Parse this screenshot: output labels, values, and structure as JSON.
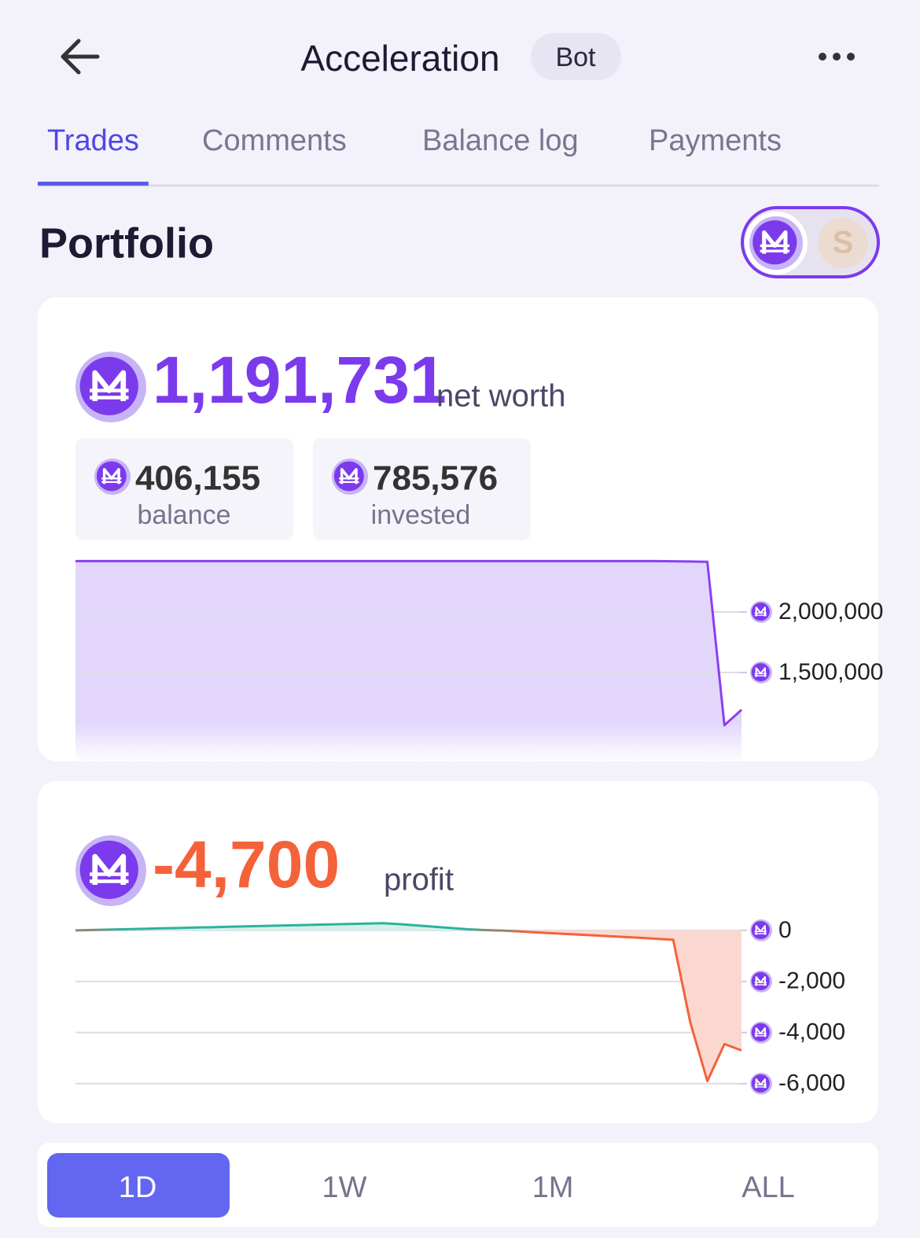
{
  "header": {
    "title": "Acceleration",
    "badge": "Bot"
  },
  "tabs": [
    "Trades",
    "Comments",
    "Balance log",
    "Payments"
  ],
  "active_tab": 0,
  "portfolio": {
    "title": "Portfolio",
    "net_worth": {
      "value": "1,191,731",
      "label": "net worth"
    },
    "balance": {
      "value": "406,155",
      "label": "balance"
    },
    "invested": {
      "value": "785,576",
      "label": "invested"
    },
    "profit": {
      "value": "-4,700",
      "label": "profit"
    }
  },
  "net_worth_chart": {
    "type": "area",
    "color": "#8b3ff0",
    "fill": "#e2d7fb",
    "values": [
      2420000,
      2420000,
      2420000,
      2420000,
      2420000,
      2420000,
      2420000,
      2420000,
      2420000,
      2420000,
      2420000,
      2420000,
      2420000,
      2420000,
      2420000,
      2420000,
      2420000,
      2420000,
      2420000,
      2420000,
      2420000,
      2420000,
      2420000,
      2420000,
      2420000,
      2420000,
      2420000,
      2420000,
      2420000,
      2420000,
      2420000,
      2420000,
      2420000,
      2420000,
      2420000,
      2418000,
      2416000,
      2414000,
      1065000,
      1191731
    ],
    "ylim": [
      750000,
      2500000
    ],
    "yticks": [
      {
        "value": 2000000,
        "label": "2,000,000"
      },
      {
        "value": 1500000,
        "label": "1,500,000"
      }
    ],
    "grid": true
  },
  "profit_chart": {
    "type": "area",
    "color_positive": "#2bb39a",
    "color_negative": "#f4623a",
    "fill_positive": "#d3f1ea",
    "fill_negative": "#fbd8cf",
    "values": [
      0,
      16,
      31,
      47,
      62,
      78,
      93,
      109,
      124,
      140,
      156,
      171,
      187,
      202,
      218,
      233,
      249,
      264,
      280,
      240,
      190,
      140,
      90,
      40,
      10,
      -10,
      -45,
      -80,
      -115,
      -150,
      -185,
      -220,
      -255,
      -290,
      -330,
      -370,
      -3600,
      -5900,
      -4450,
      -4700
    ],
    "ylim": [
      -6500,
      500
    ],
    "yticks": [
      0,
      {
        "value": -2000,
        "label": "-2,000"
      },
      {
        "value": -4000,
        "label": "-4,000"
      },
      {
        "value": -6000,
        "label": "-6,000"
      }
    ],
    "grid": true
  },
  "ranges": [
    "1D",
    "1W",
    "1M",
    "ALL"
  ],
  "active_range": 0
}
